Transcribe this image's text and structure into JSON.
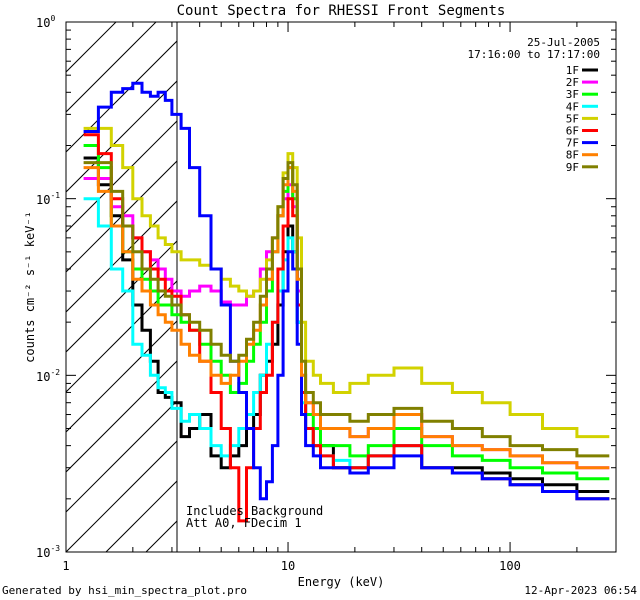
{
  "chart_data": {
    "type": "line",
    "title": "Count Spectra for RHESSI Front Segments",
    "xlabel": "Energy (keV)",
    "ylabel": "counts cm⁻² s⁻¹ keV⁻¹",
    "xscale": "log",
    "yscale": "log",
    "xlim": [
      1,
      300
    ],
    "ylim": [
      0.001,
      1
    ],
    "x_tick_labels": [
      "1",
      "10",
      "100"
    ],
    "y_tick_labels": [
      {
        "base": "10",
        "exp": "0",
        "value": 1
      },
      {
        "base": "10",
        "exp": "-1",
        "value": 0.1
      },
      {
        "base": "10",
        "exp": "-2",
        "value": 0.01
      },
      {
        "base": "10",
        "exp": "-3",
        "value": 0.001
      }
    ],
    "date": "25-Jul-2005",
    "time_range": "17:16:00 to 17:17:00",
    "notes": [
      "Includes Background",
      "Att A0, FDecim 1"
    ],
    "footer_left": "Generated by hsi_min_spectra_plot.pro",
    "footer_right": "12-Apr-2023 06:54",
    "hatched_region_keV": [
      1,
      3
    ],
    "energy_edges": [
      1.2,
      1.4,
      1.6,
      1.8,
      2.0,
      2.2,
      2.4,
      2.6,
      2.8,
      3.0,
      3.3,
      3.6,
      4.0,
      4.5,
      5.0,
      5.5,
      6.0,
      6.5,
      7.0,
      7.5,
      8.0,
      8.5,
      9.0,
      9.5,
      10.0,
      10.5,
      11.0,
      11.5,
      12.0,
      13.0,
      14.0,
      16.0,
      19.0,
      23.0,
      30.0,
      40.0,
      55.0,
      75.0,
      100.0,
      140.0,
      200.0,
      280.0
    ],
    "series": [
      {
        "name": "1F",
        "color": "#000000",
        "values": [
          0.17,
          0.12,
          0.08,
          0.045,
          0.025,
          0.018,
          0.012,
          0.008,
          0.0075,
          0.007,
          0.0045,
          0.005,
          0.006,
          0.0035,
          0.003,
          0.0035,
          0.004,
          0.005,
          0.006,
          0.01,
          0.012,
          0.015,
          0.025,
          0.05,
          0.07,
          0.05,
          0.02,
          0.008,
          0.005,
          0.004,
          0.004,
          0.003,
          0.003,
          0.0035,
          0.004,
          0.003,
          0.003,
          0.0028,
          0.0026,
          0.0024,
          0.0022
        ]
      },
      {
        "name": "2F",
        "color": "#ff00ff",
        "values": [
          0.13,
          0.13,
          0.09,
          0.08,
          0.06,
          0.05,
          0.045,
          0.04,
          0.035,
          0.03,
          0.028,
          0.03,
          0.032,
          0.03,
          0.026,
          0.025,
          0.025,
          0.028,
          0.03,
          0.04,
          0.05,
          0.06,
          0.08,
          0.1,
          0.12,
          0.09,
          0.03,
          0.01,
          0.007,
          0.006,
          0.005,
          0.005,
          0.0045,
          0.005,
          0.006,
          0.0045,
          0.004,
          0.0038,
          0.0035,
          0.0032,
          0.003
        ]
      },
      {
        "name": "3F",
        "color": "#00ff00",
        "values": [
          0.2,
          0.15,
          0.07,
          0.05,
          0.04,
          0.035,
          0.03,
          0.025,
          0.025,
          0.022,
          0.02,
          0.018,
          0.015,
          0.012,
          0.01,
          0.008,
          0.009,
          0.012,
          0.015,
          0.02,
          0.03,
          0.05,
          0.08,
          0.11,
          0.15,
          0.1,
          0.025,
          0.008,
          0.006,
          0.005,
          0.004,
          0.004,
          0.0035,
          0.004,
          0.005,
          0.004,
          0.0035,
          0.0033,
          0.003,
          0.0028,
          0.0026
        ]
      },
      {
        "name": "4F",
        "color": "#00ffff",
        "values": [
          0.1,
          0.07,
          0.04,
          0.03,
          0.015,
          0.013,
          0.01,
          0.0085,
          0.008,
          0.0065,
          0.0055,
          0.006,
          0.005,
          0.004,
          0.0035,
          0.004,
          0.005,
          0.006,
          0.008,
          0.01,
          0.015,
          0.02,
          0.03,
          0.045,
          0.06,
          0.05,
          0.02,
          0.007,
          0.005,
          0.004,
          0.0035,
          0.0033,
          0.003,
          0.0035,
          0.004,
          0.003,
          0.0028,
          0.0026,
          0.0024,
          0.0022,
          0.002
        ]
      },
      {
        "name": "5F",
        "color": "#d2d200",
        "values": [
          0.25,
          0.25,
          0.2,
          0.15,
          0.1,
          0.08,
          0.07,
          0.06,
          0.055,
          0.05,
          0.045,
          0.045,
          0.042,
          0.04,
          0.035,
          0.032,
          0.03,
          0.028,
          0.03,
          0.035,
          0.045,
          0.06,
          0.09,
          0.14,
          0.18,
          0.15,
          0.06,
          0.02,
          0.012,
          0.01,
          0.009,
          0.008,
          0.009,
          0.01,
          0.011,
          0.009,
          0.008,
          0.007,
          0.006,
          0.005,
          0.0045
        ]
      },
      {
        "name": "6F",
        "color": "#ff0000",
        "values": [
          0.23,
          0.18,
          0.1,
          0.07,
          0.06,
          0.05,
          0.04,
          0.035,
          0.03,
          0.028,
          0.022,
          0.018,
          0.012,
          0.008,
          0.005,
          0.003,
          0.0015,
          0.003,
          0.005,
          0.008,
          0.01,
          0.02,
          0.04,
          0.07,
          0.1,
          0.08,
          0.025,
          0.008,
          0.005,
          0.004,
          0.0035,
          0.003,
          0.003,
          0.0035,
          0.004,
          0.003,
          0.0028,
          0.0026,
          0.0024,
          0.0022,
          0.002
        ]
      },
      {
        "name": "7F",
        "color": "#0000ff",
        "values": [
          0.24,
          0.33,
          0.4,
          0.42,
          0.45,
          0.4,
          0.38,
          0.4,
          0.36,
          0.3,
          0.25,
          0.15,
          0.08,
          0.04,
          0.025,
          0.012,
          0.008,
          0.005,
          0.003,
          0.002,
          0.0025,
          0.004,
          0.01,
          0.03,
          0.05,
          0.04,
          0.015,
          0.006,
          0.004,
          0.0035,
          0.003,
          0.003,
          0.0028,
          0.003,
          0.0035,
          0.003,
          0.0028,
          0.0026,
          0.0024,
          0.0022,
          0.002
        ]
      },
      {
        "name": "8F",
        "color": "#ff8000",
        "values": [
          0.15,
          0.11,
          0.07,
          0.05,
          0.035,
          0.03,
          0.025,
          0.022,
          0.02,
          0.018,
          0.015,
          0.013,
          0.012,
          0.01,
          0.009,
          0.01,
          0.012,
          0.015,
          0.018,
          0.025,
          0.035,
          0.05,
          0.08,
          0.12,
          0.15,
          0.11,
          0.035,
          0.01,
          0.007,
          0.006,
          0.005,
          0.005,
          0.0045,
          0.005,
          0.006,
          0.0045,
          0.004,
          0.0038,
          0.0035,
          0.0032,
          0.003
        ]
      },
      {
        "name": "9F",
        "color": "#808000",
        "values": [
          0.16,
          0.16,
          0.11,
          0.07,
          0.05,
          0.04,
          0.035,
          0.03,
          0.028,
          0.025,
          0.022,
          0.02,
          0.018,
          0.015,
          0.013,
          0.012,
          0.013,
          0.016,
          0.02,
          0.028,
          0.04,
          0.06,
          0.09,
          0.13,
          0.16,
          0.12,
          0.04,
          0.012,
          0.008,
          0.007,
          0.006,
          0.006,
          0.0055,
          0.006,
          0.0065,
          0.0055,
          0.005,
          0.0045,
          0.004,
          0.0038,
          0.0035
        ]
      }
    ]
  }
}
